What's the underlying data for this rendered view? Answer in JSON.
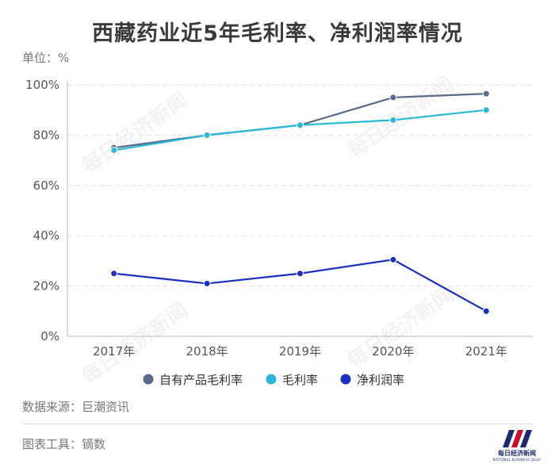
{
  "title": "西藏药业近5年毛利率、净利润率情况",
  "unit_label": "单位：%",
  "watermark": "每日经济新闻",
  "source": "数据来源：巨潮资讯",
  "tool": "图表工具：镝数",
  "logo": {
    "text": "每日经济新闻",
    "subtext": "NATIONAL BUSINESS DAILY"
  },
  "colors": {
    "self_product": "#5a6a8c",
    "gross": "#2ab8d8",
    "net": "#1c2fc2",
    "axis_text": "#555555",
    "grid": "#e3e3e3"
  },
  "chart_data": {
    "type": "line",
    "categories": [
      "2017年",
      "2018年",
      "2019年",
      "2020年",
      "2021年"
    ],
    "ylim": [
      0,
      100
    ],
    "yticks": [
      0,
      20,
      40,
      60,
      80,
      100
    ],
    "ytick_labels": [
      "0%",
      "20%",
      "40%",
      "60%",
      "80%",
      "100%"
    ],
    "grid": true,
    "legend_position": "bottom",
    "series": [
      {
        "name": "自有产品毛利率",
        "values": [
          75,
          80,
          84,
          95,
          96.5
        ]
      },
      {
        "name": "毛利率",
        "values": [
          74,
          80,
          84,
          86,
          90
        ]
      },
      {
        "name": "净利润率",
        "values": [
          25,
          21,
          25,
          30.5,
          10
        ]
      }
    ]
  }
}
